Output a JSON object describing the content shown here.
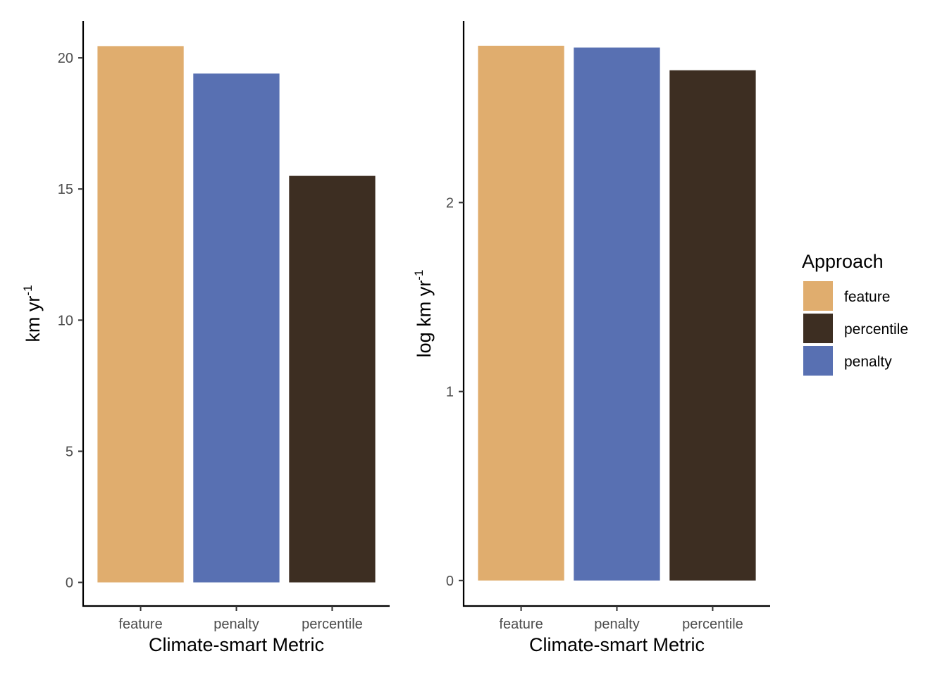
{
  "chart_data": [
    {
      "type": "bar",
      "categories": [
        "feature",
        "penalty",
        "percentile"
      ],
      "values": [
        20.45,
        19.4,
        15.5
      ],
      "colors": [
        "#E0AD6E",
        "#5870B2",
        "#3D2E22"
      ],
      "xlabel": "Climate-smart Metric",
      "ylabel": {
        "main": "km yr",
        "sup": "-1"
      },
      "ylim": [
        -0.9,
        21.4
      ],
      "yticks": [
        0,
        5,
        10,
        15,
        20
      ],
      "ytick_labels": [
        "0",
        "5",
        "10",
        "15",
        "20"
      ],
      "grid": false
    },
    {
      "type": "bar",
      "categories": [
        "feature",
        "penalty",
        "percentile"
      ],
      "values": [
        2.83,
        2.82,
        2.7
      ],
      "colors": [
        "#E0AD6E",
        "#5870B2",
        "#3D2E22"
      ],
      "xlabel": "Climate-smart Metric",
      "ylabel": {
        "main": "log km yr",
        "sup": "-1"
      },
      "ylim": [
        -0.135,
        2.96
      ],
      "yticks": [
        0,
        1,
        2
      ],
      "ytick_labels": [
        "0",
        "1",
        "2"
      ],
      "grid": false
    }
  ],
  "legend": {
    "title": "Approach",
    "placement": "right",
    "items": [
      {
        "label": "feature",
        "color": "#E0AD6E"
      },
      {
        "label": "percentile",
        "color": "#3D2E22"
      },
      {
        "label": "penalty",
        "color": "#5870B2"
      }
    ]
  }
}
